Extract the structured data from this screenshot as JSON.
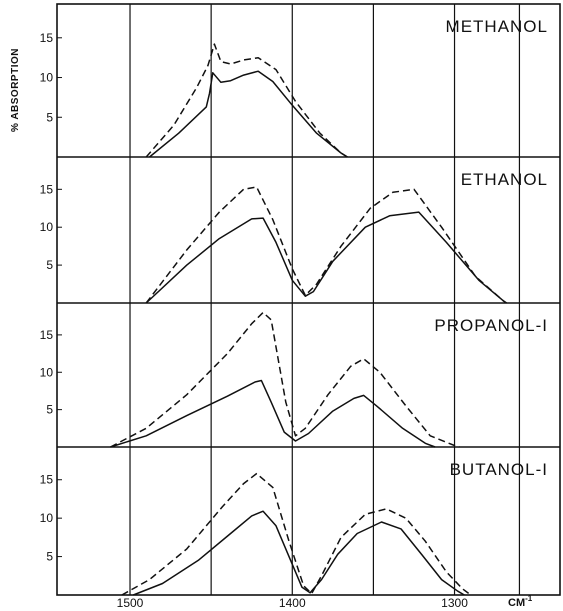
{
  "chart_data": {
    "type": "line",
    "ylabel": "% ABSORPTION",
    "xunit": "CM",
    "xunit_sup": "-1",
    "xlim": [
      1545,
      1235
    ],
    "ylim": [
      0,
      19
    ],
    "x_ticks": [
      1500,
      1400,
      1300
    ],
    "x_tick_labels": [
      "1500",
      "1400",
      "1300"
    ],
    "x_gridlines": [
      1500,
      1450,
      1400,
      1350,
      1300,
      1260
    ],
    "y_ticks": [
      5,
      10,
      15
    ],
    "y_tick_labels": [
      "5",
      "10",
      "15"
    ],
    "panels": [
      {
        "title": "METHANOL",
        "series": [
          {
            "style": "solid",
            "points": [
              [
                1488,
                0
              ],
              [
                1470,
                3
              ],
              [
                1453,
                6.3
              ],
              [
                1451,
                8
              ],
              [
                1449,
                10.6
              ],
              [
                1444,
                9.4
              ],
              [
                1438,
                9.6
              ],
              [
                1430,
                10.3
              ],
              [
                1421,
                10.8
              ],
              [
                1412,
                9.5
              ],
              [
                1400,
                6.5
              ],
              [
                1385,
                3
              ],
              [
                1370,
                0.5
              ],
              [
                1366,
                0
              ]
            ]
          },
          {
            "style": "dashed",
            "points": [
              [
                1490,
                0
              ],
              [
                1473,
                4
              ],
              [
                1459,
                8.7
              ],
              [
                1452,
                11.5
              ],
              [
                1448,
                14.2
              ],
              [
                1444,
                12
              ],
              [
                1438,
                11.7
              ],
              [
                1430,
                12.2
              ],
              [
                1421,
                12.5
              ],
              [
                1410,
                11
              ],
              [
                1398,
                7
              ],
              [
                1383,
                3
              ],
              [
                1370,
                0.5
              ],
              [
                1366,
                0
              ]
            ]
          }
        ]
      },
      {
        "title": "ETHANOL",
        "series": [
          {
            "style": "solid",
            "points": [
              [
                1490,
                0
              ],
              [
                1465,
                5
              ],
              [
                1445,
                8.5
              ],
              [
                1425,
                11.1
              ],
              [
                1418,
                11.2
              ],
              [
                1410,
                8
              ],
              [
                1400,
                3
              ],
              [
                1392,
                0.9
              ],
              [
                1387,
                1.5
              ],
              [
                1375,
                5.5
              ],
              [
                1355,
                10
              ],
              [
                1340,
                11.5
              ],
              [
                1322,
                12
              ],
              [
                1305,
                8
              ],
              [
                1285,
                3
              ],
              [
                1270,
                0.3
              ],
              [
                1268,
                0
              ]
            ]
          },
          {
            "style": "dashed",
            "points": [
              [
                1490,
                0
              ],
              [
                1465,
                7
              ],
              [
                1445,
                12
              ],
              [
                1430,
                15
              ],
              [
                1422,
                15.3
              ],
              [
                1412,
                11
              ],
              [
                1400,
                4.5
              ],
              [
                1392,
                1
              ],
              [
                1385,
                2.5
              ],
              [
                1370,
                7.5
              ],
              [
                1352,
                12.5
              ],
              [
                1338,
                14.6
              ],
              [
                1325,
                15
              ],
              [
                1308,
                10
              ],
              [
                1287,
                3.5
              ],
              [
                1270,
                0.3
              ],
              [
                1268,
                0
              ]
            ]
          }
        ]
      },
      {
        "title": "PROPANOL-I",
        "series": [
          {
            "style": "solid",
            "points": [
              [
                1512,
                0
              ],
              [
                1490,
                1.5
              ],
              [
                1465,
                4.2
              ],
              [
                1440,
                6.8
              ],
              [
                1423,
                8.7
              ],
              [
                1419,
                8.9
              ],
              [
                1413,
                6
              ],
              [
                1405,
                2
              ],
              [
                1398,
                0.8
              ],
              [
                1390,
                1.8
              ],
              [
                1375,
                4.8
              ],
              [
                1362,
                6.5
              ],
              [
                1356,
                6.9
              ],
              [
                1348,
                5.5
              ],
              [
                1332,
                2.5
              ],
              [
                1318,
                0.5
              ],
              [
                1312,
                0
              ]
            ]
          },
          {
            "style": "dashed",
            "points": [
              [
                1512,
                0
              ],
              [
                1490,
                2.5
              ],
              [
                1465,
                7
              ],
              [
                1440,
                12.5
              ],
              [
                1425,
                16.5
              ],
              [
                1418,
                18
              ],
              [
                1413,
                17
              ],
              [
                1404,
                6
              ],
              [
                1398,
                1.5
              ],
              [
                1392,
                2.5
              ],
              [
                1378,
                7
              ],
              [
                1364,
                10.8
              ],
              [
                1356,
                11.8
              ],
              [
                1346,
                10
              ],
              [
                1330,
                5.5
              ],
              [
                1315,
                1.5
              ],
              [
                1300,
                0.2
              ],
              [
                1297,
                0
              ]
            ]
          }
        ]
      },
      {
        "title": "BUTANOL-I",
        "series": [
          {
            "style": "solid",
            "points": [
              [
                1498,
                0
              ],
              [
                1480,
                1.5
              ],
              [
                1458,
                4.5
              ],
              [
                1438,
                8
              ],
              [
                1425,
                10.3
              ],
              [
                1418,
                10.9
              ],
              [
                1410,
                9
              ],
              [
                1402,
                5
              ],
              [
                1394,
                1
              ],
              [
                1389,
                0.3
              ],
              [
                1382,
                2
              ],
              [
                1372,
                5.3
              ],
              [
                1360,
                8
              ],
              [
                1345,
                9.5
              ],
              [
                1333,
                8.6
              ],
              [
                1320,
                5.2
              ],
              [
                1308,
                2
              ],
              [
                1298,
                0.5
              ],
              [
                1294,
                0
              ]
            ]
          },
          {
            "style": "dashed",
            "points": [
              [
                1505,
                0
              ],
              [
                1488,
                2
              ],
              [
                1465,
                6
              ],
              [
                1443,
                11.5
              ],
              [
                1430,
                14.5
              ],
              [
                1422,
                15.8
              ],
              [
                1412,
                14
              ],
              [
                1402,
                7
              ],
              [
                1393,
                1.2
              ],
              [
                1388,
                0.2
              ],
              [
                1382,
                2.5
              ],
              [
                1370,
                7.5
              ],
              [
                1355,
                10.5
              ],
              [
                1342,
                11.2
              ],
              [
                1330,
                10
              ],
              [
                1318,
                7
              ],
              [
                1305,
                3
              ],
              [
                1295,
                0.8
              ],
              [
                1290,
                0
              ]
            ]
          }
        ]
      }
    ]
  }
}
